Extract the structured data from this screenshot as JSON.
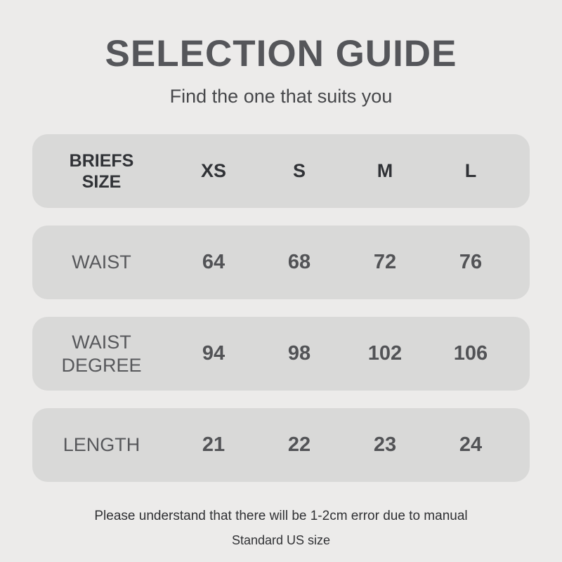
{
  "page": {
    "background_color": "#ecebea",
    "row_background_color": "#d9d9d8",
    "title_color": "#55565a",
    "label_text_color": "#57585b",
    "dark_text_color": "#303236"
  },
  "chart_data": {
    "type": "table",
    "title": "SELECTION GUIDE",
    "subtitle": "Find the one that suits you",
    "columns": [
      "BRIEFS SIZE",
      "XS",
      "S",
      "M",
      "L"
    ],
    "rows": [
      {
        "label": "WAIST",
        "values": [
          64,
          68,
          72,
          76
        ]
      },
      {
        "label": "WAIST DEGREE",
        "values": [
          94,
          98,
          102,
          106
        ]
      },
      {
        "label": "LENGTH",
        "values": [
          21,
          22,
          23,
          24
        ]
      }
    ],
    "notes": [
      "Please understand that there will be 1-2cm error due to manual",
      "Standard US size"
    ]
  }
}
